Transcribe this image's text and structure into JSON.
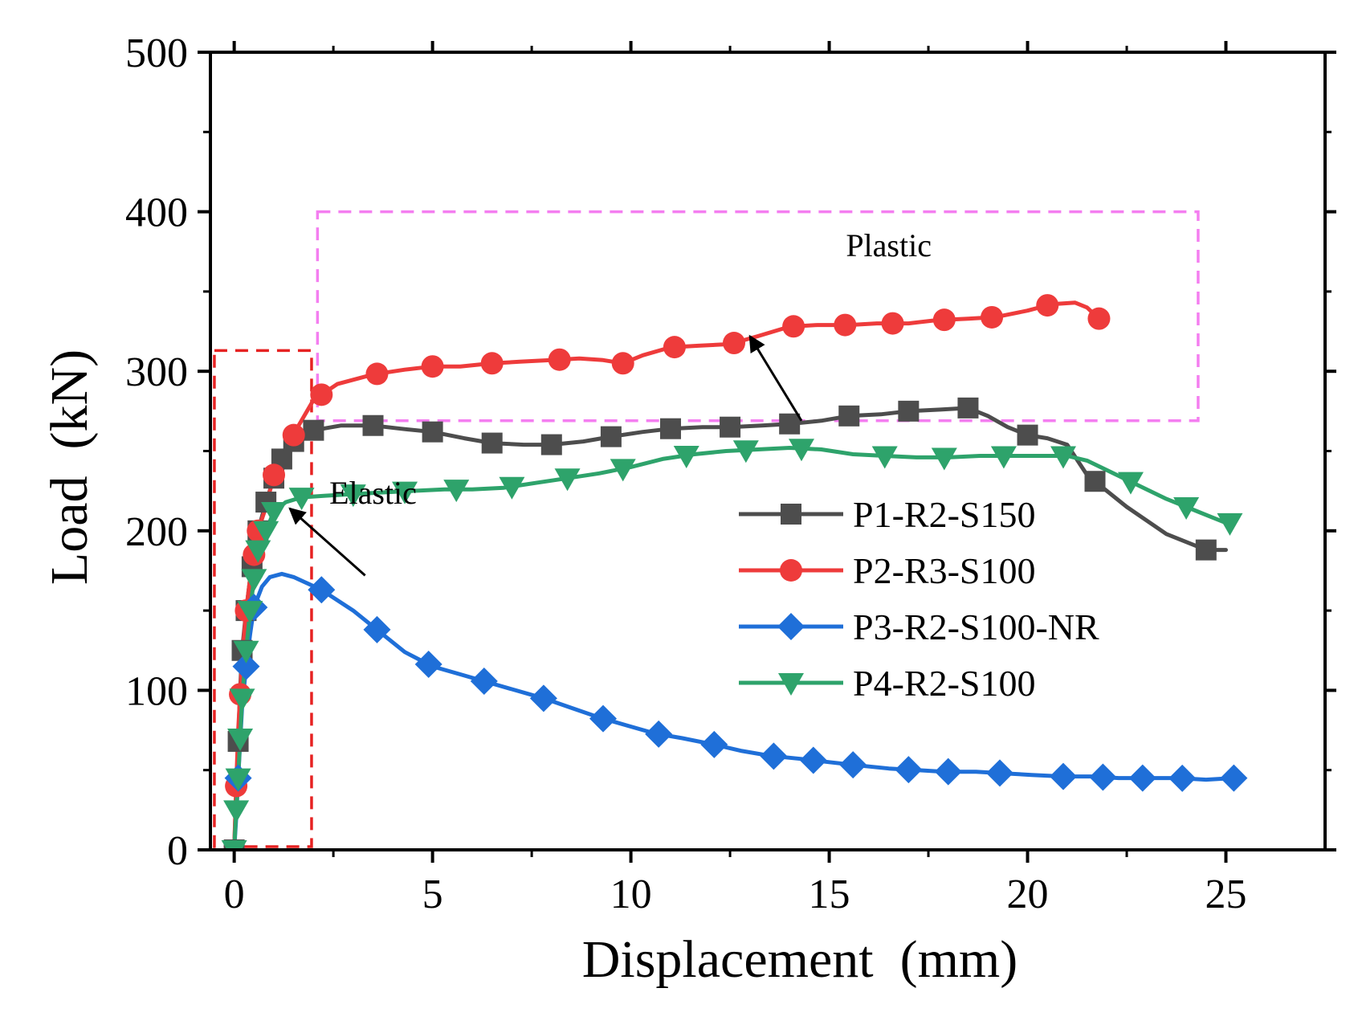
{
  "chart_data": {
    "type": "line",
    "title": "",
    "xlabel": "Displacement  (mm)",
    "ylabel": "Load  (kN)",
    "xlim": [
      -0.6,
      27.5
    ],
    "ylim": [
      0,
      500
    ],
    "xticks": [
      0,
      5,
      10,
      15,
      20,
      25
    ],
    "yticks": [
      0,
      100,
      200,
      300,
      400,
      500
    ],
    "xtick_labels": [
      "0",
      "5",
      "10",
      "15",
      "20",
      "25"
    ],
    "ytick_labels": [
      "0",
      "100",
      "200",
      "300",
      "400",
      "500"
    ],
    "grid": false,
    "legend_position": "center-right",
    "series": [
      {
        "name": "P1-R2-S150",
        "color": "#4d4d4d",
        "marker": "square",
        "x": [
          0,
          0.05,
          0.1,
          0.15,
          0.2,
          0.3,
          0.4,
          0.5,
          0.6,
          0.8,
          1.0,
          1.2,
          1.5,
          2.0,
          2.7,
          3.5,
          4.2,
          5.0,
          5.8,
          6.5,
          7.3,
          8.0,
          8.8,
          9.5,
          10.3,
          11.0,
          11.8,
          12.5,
          13.3,
          14.0,
          14.8,
          15.5,
          16.3,
          17.0,
          17.8,
          18.5,
          19.0,
          19.5,
          20.0,
          20.5,
          21.0,
          21.5,
          22.5,
          23.5,
          24.5,
          25.0
        ],
        "y": [
          0,
          35,
          68,
          100,
          125,
          150,
          170,
          185,
          200,
          218,
          233,
          245,
          256,
          263,
          266,
          266,
          264,
          262,
          258,
          255,
          254,
          254,
          256,
          259,
          262,
          264,
          265,
          265,
          266,
          267,
          269,
          272,
          273,
          275,
          276,
          277,
          272,
          265,
          260,
          258,
          254,
          235,
          215,
          198,
          188,
          188
        ],
        "marker_x": [
          0,
          0.1,
          0.2,
          0.3,
          0.45,
          0.6,
          0.8,
          1.0,
          1.2,
          1.5,
          2.0,
          3.5,
          5.0,
          6.5,
          8.0,
          9.5,
          11.0,
          12.5,
          14.0,
          15.5,
          17.0,
          18.5,
          20.0,
          21.7,
          24.5
        ]
      },
      {
        "name": "P2-R3-S100",
        "color": "#ee3b3b",
        "marker": "circle",
        "x": [
          0,
          0.05,
          0.1,
          0.2,
          0.3,
          0.4,
          0.5,
          0.6,
          0.8,
          1.0,
          1.3,
          1.6,
          2.0,
          2.6,
          3.5,
          4.3,
          5.0,
          5.7,
          6.5,
          7.2,
          8.0,
          8.7,
          9.3,
          9.8,
          10.3,
          11.0,
          11.7,
          12.5,
          13.2,
          14.0,
          14.7,
          15.5,
          16.2,
          17.0,
          17.7,
          18.5,
          19.2,
          20.0,
          20.6,
          21.2,
          21.5,
          21.8
        ],
        "y": [
          0,
          40,
          75,
          120,
          150,
          170,
          185,
          200,
          215,
          235,
          250,
          265,
          282,
          292,
          298,
          301,
          303,
          303,
          305,
          306,
          307,
          308,
          307,
          305,
          310,
          315,
          316,
          317,
          322,
          328,
          329,
          329,
          330,
          330,
          332,
          333,
          334,
          338,
          342,
          343,
          340,
          333
        ],
        "marker_x": [
          0.05,
          0.15,
          0.3,
          0.5,
          0.6,
          1.0,
          1.5,
          2.2,
          3.6,
          5.0,
          6.5,
          8.2,
          9.8,
          11.1,
          12.6,
          14.1,
          15.4,
          16.6,
          17.9,
          19.1,
          20.5,
          21.8
        ]
      },
      {
        "name": "P3-R2-S100-NR",
        "color": "#1f6fd8",
        "marker": "diamond",
        "x": [
          0,
          0.05,
          0.1,
          0.2,
          0.3,
          0.4,
          0.5,
          0.7,
          0.9,
          1.2,
          1.5,
          2.2,
          3.0,
          3.7,
          4.3,
          5.0,
          5.7,
          6.4,
          7.1,
          7.8,
          8.5,
          9.2,
          9.9,
          10.6,
          11.3,
          12.1,
          12.8,
          13.5,
          14.3,
          15.0,
          15.7,
          16.5,
          17.2,
          17.9,
          18.7,
          19.4,
          20.1,
          20.9,
          21.6,
          22.3,
          23.1,
          23.8,
          24.5,
          25.2
        ],
        "y": [
          0,
          20,
          45,
          90,
          115,
          135,
          152,
          165,
          171,
          173,
          171,
          163,
          150,
          136,
          124,
          115,
          110,
          105,
          100,
          95,
          89,
          83,
          78,
          73,
          70,
          66,
          62,
          59,
          57,
          55,
          53,
          51,
          50,
          49,
          49,
          48,
          47,
          46,
          46,
          45,
          45,
          45,
          44,
          45
        ],
        "marker_x": [
          0.1,
          0.3,
          0.5,
          2.2,
          3.6,
          4.9,
          6.3,
          7.8,
          9.3,
          10.7,
          12.1,
          13.6,
          14.6,
          15.6,
          17.0,
          18.0,
          19.3,
          20.9,
          21.9,
          22.9,
          23.9,
          25.2
        ]
      },
      {
        "name": "P4-R2-S100",
        "color": "#2ea36b",
        "marker": "triangle-down",
        "x": [
          0,
          0.05,
          0.1,
          0.15,
          0.2,
          0.3,
          0.4,
          0.5,
          0.6,
          0.8,
          1.0,
          1.3,
          1.7,
          2.3,
          3.0,
          3.7,
          4.5,
          5.3,
          6.0,
          6.8,
          7.6,
          8.4,
          9.2,
          10.0,
          10.8,
          11.6,
          12.4,
          13.2,
          14.0,
          14.8,
          15.6,
          16.4,
          17.2,
          18.0,
          18.8,
          19.6,
          20.4,
          21.0,
          21.5,
          22.5,
          23.5,
          24.3,
          25.0
        ],
        "y": [
          0,
          25,
          45,
          70,
          95,
          125,
          150,
          170,
          188,
          200,
          212,
          218,
          221,
          222,
          223,
          224,
          225,
          226,
          226,
          227,
          230,
          233,
          236,
          240,
          245,
          248,
          250,
          251,
          252,
          251,
          248,
          247,
          246,
          246,
          247,
          247,
          247,
          247,
          244,
          232,
          220,
          212,
          205
        ],
        "marker_x": [
          0,
          0.05,
          0.1,
          0.15,
          0.2,
          0.3,
          0.4,
          0.5,
          0.6,
          0.8,
          1.0,
          1.7,
          3.0,
          4.3,
          5.6,
          7.0,
          8.4,
          9.8,
          11.4,
          12.9,
          14.3,
          16.4,
          17.9,
          19.4,
          20.9,
          22.6,
          24.0,
          25.1
        ]
      }
    ],
    "annotations": [
      {
        "text": "Elastic",
        "x": 3.5,
        "y": 217,
        "region_x": [
          -0.5,
          1.95
        ],
        "region_y": [
          2,
          313
        ],
        "region_color": "#e62222",
        "arrow_from": [
          3.3,
          172
        ],
        "arrow_to": [
          1.4,
          214
        ]
      },
      {
        "text": "Plastic",
        "x": 16.5,
        "y": 372,
        "region_x": [
          2.1,
          24.3
        ],
        "region_y": [
          269,
          400
        ],
        "region_color": "#f47ef0",
        "arrow_from": [
          14.3,
          269
        ],
        "arrow_to": [
          13.0,
          322
        ]
      }
    ]
  }
}
